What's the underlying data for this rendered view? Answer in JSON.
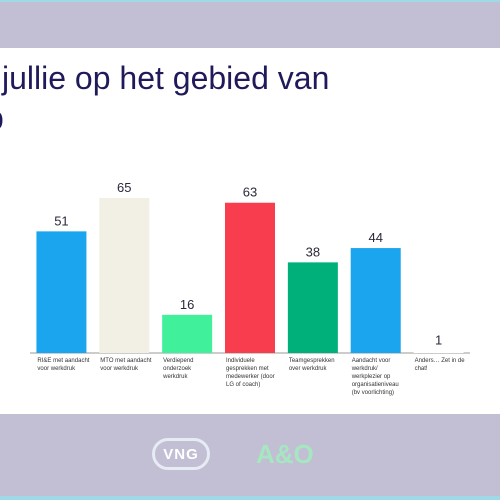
{
  "slide": {
    "title_line1": "jullie op het gebied van",
    "title_line2": "p",
    "logos": {
      "left": "VNG",
      "right": "A&O"
    }
  },
  "colors": {
    "background_band": "#c2bfd4",
    "slide": "#ffffff",
    "title": "#1f1a5a",
    "accent_frame": "#9fd8e6"
  },
  "chart_data": {
    "type": "bar",
    "title": "",
    "xlabel": "",
    "ylabel": "",
    "ylim": [
      0,
      70
    ],
    "grid": false,
    "legend": "none",
    "categories": [
      [
        "RI&E met aandacht",
        "voor werkdruk"
      ],
      [
        "MTO met aandacht",
        "voor werkdruk"
      ],
      [
        "Verdiepend",
        "onderzoek",
        "werkdruk"
      ],
      [
        "Individuele",
        "gesprekken met",
        "medewerker (door",
        "LG of coach)"
      ],
      [
        "Teamgesprekken",
        "over werkdruk"
      ],
      [
        "Aandacht voor",
        "werkdruk/",
        "werkplezier op",
        "organisatieniveau",
        "(bv voorlichting)"
      ],
      [
        "Anders… Zet in de",
        "chat!"
      ]
    ],
    "values": [
      51,
      65,
      16,
      63,
      38,
      44,
      1
    ],
    "colors": [
      "#1aa5ee",
      "#f2efe4",
      "#41f09a",
      "#f83e4e",
      "#00b07a",
      "#1aa5ee",
      "#ffffff"
    ]
  }
}
